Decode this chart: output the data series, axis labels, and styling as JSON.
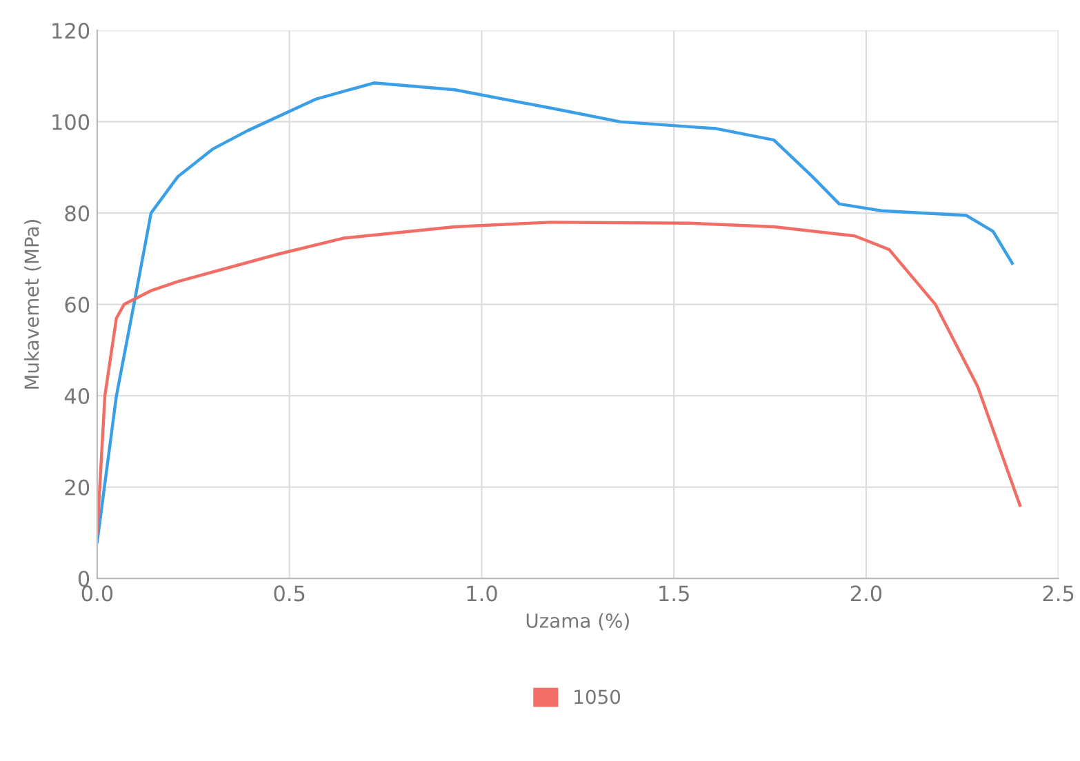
{
  "chart_data": {
    "type": "line",
    "xlabel": "Uzama (%)",
    "ylabel": "Mukavemet (MPa)",
    "xlim": [
      0,
      2.5
    ],
    "xticks": [
      {
        "value": 0,
        "label": "0.0"
      },
      0.5,
      {
        "value": 1,
        "label": "1.0"
      },
      1.5,
      {
        "value": 2,
        "label": "2.0"
      },
      2.5
    ],
    "ylim": [
      0,
      120
    ],
    "yticks": [
      0,
      20,
      40,
      60,
      80,
      100,
      120
    ],
    "grid": true,
    "legend": "bottom",
    "marker": "none",
    "line_style": "solid",
    "series": [
      {
        "color": "#3a9fe6",
        "x": [
          0.0,
          0.05,
          0.1,
          0.14,
          0.21,
          0.3,
          0.39,
          0.57,
          0.72,
          0.93,
          1.18,
          1.36,
          1.61,
          1.76,
          1.86,
          1.93,
          2.04,
          2.26,
          2.33,
          2.38
        ],
        "values": [
          8,
          40,
          62,
          80,
          88,
          94,
          98,
          105,
          108.5,
          107,
          103,
          100,
          98.5,
          96,
          88,
          82,
          80.5,
          79.5,
          76,
          69
        ]
      },
      {
        "name": "1050",
        "color": "#f06e66",
        "x": [
          0.0,
          0.02,
          0.05,
          0.07,
          0.14,
          0.21,
          0.47,
          0.64,
          0.93,
          1.18,
          1.54,
          1.76,
          1.97,
          2.06,
          2.18,
          2.29,
          2.4
        ],
        "values": [
          10,
          40,
          57,
          60,
          63,
          65,
          71,
          74.5,
          77,
          78,
          77.8,
          77,
          75,
          72,
          60,
          42,
          16
        ]
      }
    ]
  }
}
